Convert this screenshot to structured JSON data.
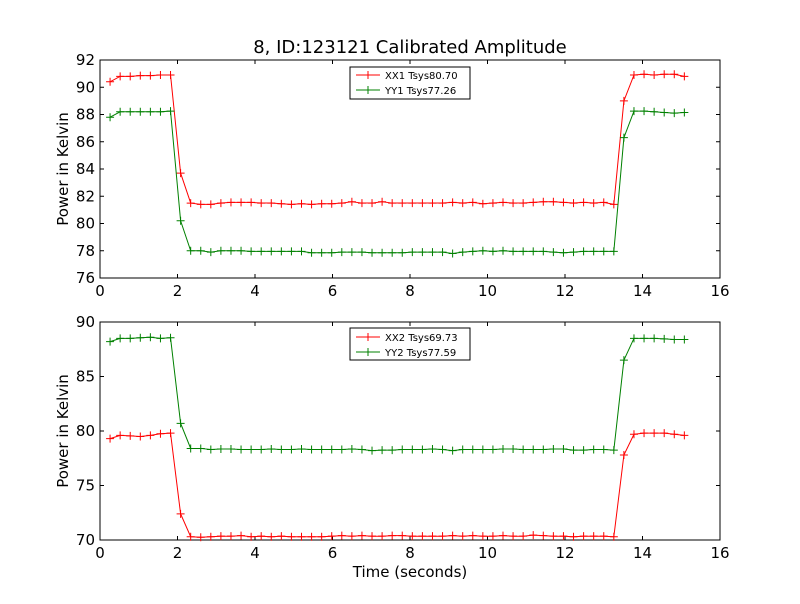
{
  "figure": {
    "title": "8, ID:123121 Calibrated Amplitude",
    "xlabel": "Time (seconds)"
  },
  "colors": {
    "red": "#ff0000",
    "green": "#008000",
    "axes": "#000000",
    "background": "#ffffff"
  },
  "chart_data": [
    {
      "type": "line",
      "ylabel": "Power in Kelvin",
      "xlim": [
        0,
        16
      ],
      "ylim": [
        76,
        92
      ],
      "xticks": [
        "0",
        "2",
        "4",
        "6",
        "8",
        "10",
        "12",
        "14",
        "16"
      ],
      "yticks": [
        "76",
        "78",
        "80",
        "82",
        "84",
        "86",
        "88",
        "90",
        "92"
      ],
      "xtick_values": [
        0,
        2,
        4,
        6,
        8,
        10,
        12,
        14,
        16
      ],
      "ytick_values": [
        76,
        78,
        80,
        82,
        84,
        86,
        88,
        90,
        92
      ],
      "grid": false,
      "legend_position": "upper-center",
      "x": [
        0.26,
        0.52,
        0.78,
        1.04,
        1.3,
        1.56,
        1.82,
        2.08,
        2.34,
        2.6,
        2.86,
        3.12,
        3.38,
        3.64,
        3.9,
        4.16,
        4.42,
        4.68,
        4.94,
        5.2,
        5.46,
        5.72,
        5.98,
        6.24,
        6.5,
        6.76,
        7.02,
        7.28,
        7.54,
        7.8,
        8.06,
        8.32,
        8.58,
        8.84,
        9.1,
        9.36,
        9.62,
        9.88,
        10.14,
        10.4,
        10.66,
        10.92,
        11.18,
        11.44,
        11.7,
        11.96,
        12.22,
        12.48,
        12.74,
        13.0,
        13.26,
        13.52,
        13.78,
        14.04,
        14.3,
        14.56,
        14.82,
        15.08
      ],
      "series": [
        {
          "name": "XX1 Tsys80.70",
          "color": "#ff0000",
          "values": [
            90.4,
            90.8,
            90.8,
            90.85,
            90.85,
            90.9,
            90.9,
            83.7,
            81.5,
            81.4,
            81.4,
            81.5,
            81.55,
            81.55,
            81.55,
            81.5,
            81.5,
            81.45,
            81.4,
            81.45,
            81.4,
            81.45,
            81.45,
            81.5,
            81.6,
            81.5,
            81.5,
            81.6,
            81.5,
            81.5,
            81.5,
            81.5,
            81.5,
            81.5,
            81.55,
            81.5,
            81.55,
            81.45,
            81.5,
            81.55,
            81.5,
            81.5,
            81.55,
            81.6,
            81.6,
            81.55,
            81.5,
            81.55,
            81.5,
            81.55,
            81.4,
            89.0,
            90.9,
            90.95,
            90.9,
            90.95,
            90.95,
            90.8
          ]
        },
        {
          "name": "YY1 Tsys77.26",
          "color": "#008000",
          "values": [
            87.8,
            88.2,
            88.2,
            88.2,
            88.2,
            88.2,
            88.25,
            80.2,
            78.0,
            78.0,
            77.9,
            78.0,
            78.0,
            78.0,
            77.95,
            77.95,
            77.95,
            77.95,
            77.95,
            77.95,
            77.85,
            77.85,
            77.85,
            77.9,
            77.9,
            77.9,
            77.85,
            77.85,
            77.85,
            77.85,
            77.9,
            77.9,
            77.9,
            77.9,
            77.8,
            77.9,
            77.95,
            78.0,
            77.95,
            78.0,
            77.95,
            77.95,
            77.95,
            77.95,
            77.9,
            77.85,
            77.9,
            77.95,
            77.95,
            77.95,
            77.95,
            86.3,
            88.25,
            88.25,
            88.2,
            88.15,
            88.1,
            88.15
          ]
        }
      ]
    },
    {
      "type": "line",
      "ylabel": "Power in Kelvin",
      "xlabel": "Time (seconds)",
      "xlim": [
        0,
        16
      ],
      "ylim": [
        70,
        90
      ],
      "xticks": [
        "0",
        "2",
        "4",
        "6",
        "8",
        "10",
        "12",
        "14",
        "16"
      ],
      "yticks": [
        "70",
        "75",
        "80",
        "85",
        "90"
      ],
      "xtick_values": [
        0,
        2,
        4,
        6,
        8,
        10,
        12,
        14,
        16
      ],
      "ytick_values": [
        70,
        75,
        80,
        85,
        90
      ],
      "grid": false,
      "legend_position": "upper-center",
      "x": [
        0.26,
        0.52,
        0.78,
        1.04,
        1.3,
        1.56,
        1.82,
        2.08,
        2.34,
        2.6,
        2.86,
        3.12,
        3.38,
        3.64,
        3.9,
        4.16,
        4.42,
        4.68,
        4.94,
        5.2,
        5.46,
        5.72,
        5.98,
        6.24,
        6.5,
        6.76,
        7.02,
        7.28,
        7.54,
        7.8,
        8.06,
        8.32,
        8.58,
        8.84,
        9.1,
        9.36,
        9.62,
        9.88,
        10.14,
        10.4,
        10.66,
        10.92,
        11.18,
        11.44,
        11.7,
        11.96,
        12.22,
        12.48,
        12.74,
        13.0,
        13.26,
        13.52,
        13.78,
        14.04,
        14.3,
        14.56,
        14.82,
        15.08
      ],
      "series": [
        {
          "name": "XX2 Tsys69.73",
          "color": "#ff0000",
          "values": [
            79.3,
            79.6,
            79.55,
            79.5,
            79.6,
            79.75,
            79.8,
            72.4,
            70.3,
            70.25,
            70.3,
            70.35,
            70.35,
            70.4,
            70.3,
            70.35,
            70.3,
            70.35,
            70.3,
            70.3,
            70.3,
            70.3,
            70.35,
            70.4,
            70.35,
            70.4,
            70.35,
            70.35,
            70.4,
            70.4,
            70.35,
            70.35,
            70.35,
            70.35,
            70.4,
            70.35,
            70.4,
            70.35,
            70.35,
            70.4,
            70.35,
            70.35,
            70.45,
            70.4,
            70.35,
            70.35,
            70.3,
            70.35,
            70.35,
            70.35,
            70.3,
            77.8,
            79.7,
            79.8,
            79.8,
            79.8,
            79.7,
            79.6
          ]
        },
        {
          "name": "YY2 Tsys77.59",
          "color": "#008000",
          "values": [
            88.2,
            88.5,
            88.5,
            88.55,
            88.6,
            88.5,
            88.55,
            80.7,
            78.4,
            78.4,
            78.3,
            78.35,
            78.35,
            78.3,
            78.3,
            78.3,
            78.35,
            78.3,
            78.3,
            78.35,
            78.3,
            78.3,
            78.3,
            78.3,
            78.35,
            78.3,
            78.2,
            78.25,
            78.25,
            78.3,
            78.3,
            78.3,
            78.35,
            78.3,
            78.2,
            78.3,
            78.3,
            78.3,
            78.3,
            78.35,
            78.35,
            78.3,
            78.3,
            78.3,
            78.35,
            78.35,
            78.25,
            78.25,
            78.3,
            78.3,
            78.25,
            86.5,
            88.5,
            88.5,
            88.5,
            88.45,
            88.4,
            88.4
          ]
        }
      ]
    }
  ]
}
